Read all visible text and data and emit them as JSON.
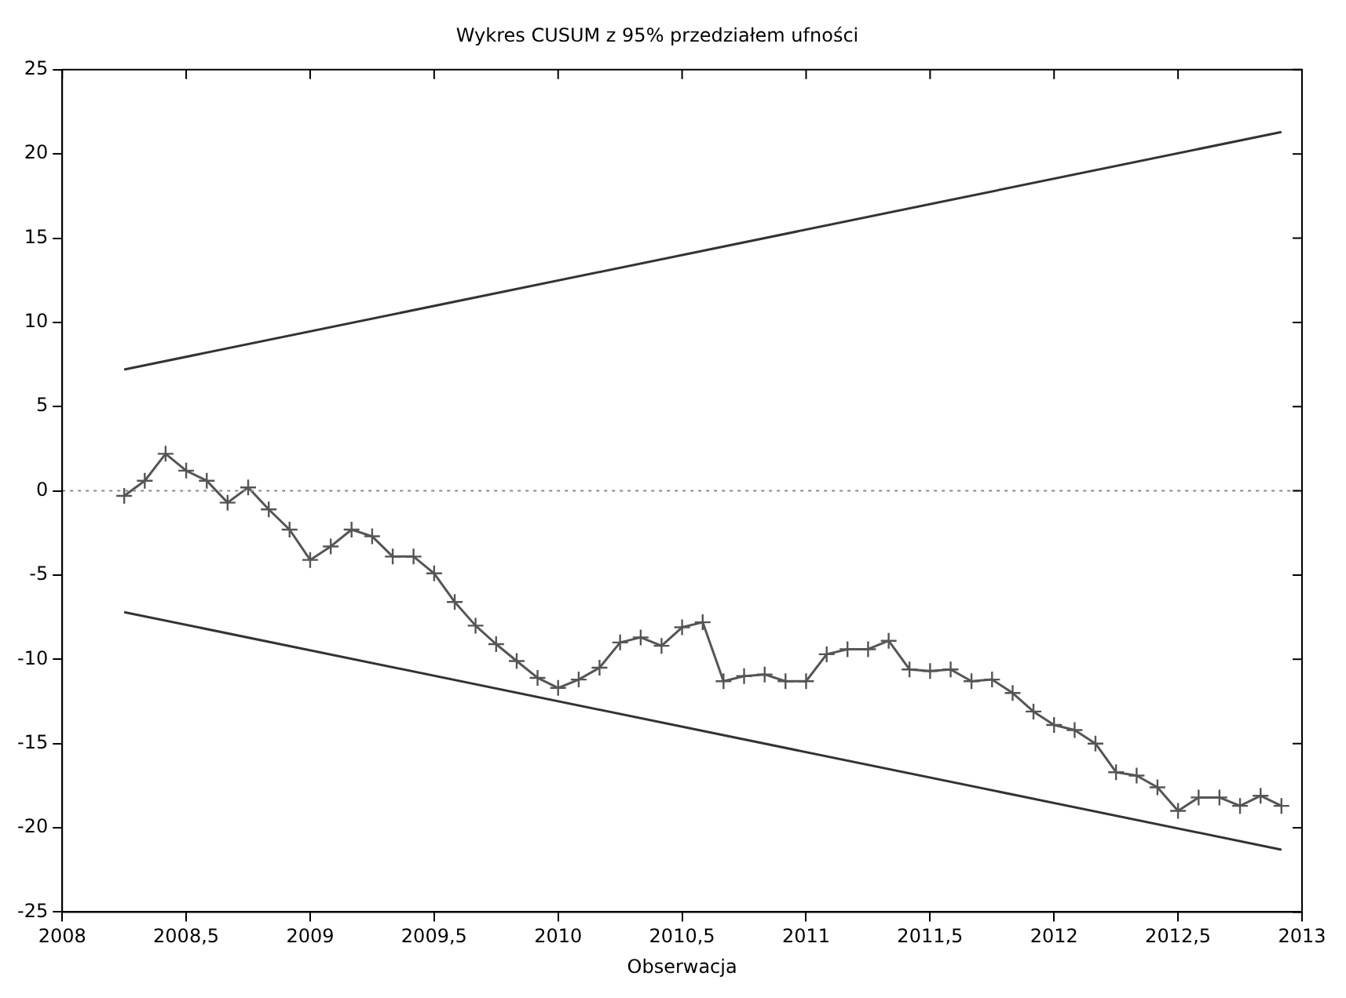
{
  "chart_data": {
    "type": "line",
    "title": "Wykres CUSUM z 95% przedziałem ufności",
    "xlabel": "Obserwacja",
    "xlim": [
      2008,
      2013
    ],
    "xticks": [
      2008,
      {
        "value": 2008.5,
        "label": "2008,5"
      },
      2009,
      {
        "value": 2009.5,
        "label": "2009,5"
      },
      2010,
      {
        "value": 2010.5,
        "label": "2010,5"
      },
      2011,
      {
        "value": 2011.5,
        "label": "2011,5"
      },
      2012,
      {
        "value": 2012.5,
        "label": "2012,5"
      },
      2013
    ],
    "ylim": [
      -25,
      25
    ],
    "yticks": [
      -25,
      -20,
      -15,
      -10,
      -5,
      0,
      5,
      10,
      15,
      20,
      25
    ],
    "grid": false,
    "legend": false,
    "ref_lines": [
      {
        "axis": "y",
        "value": 0,
        "color": "#888888",
        "line_style": "dotted"
      }
    ],
    "series": [
      {
        "color": "#555555",
        "marker": "cross",
        "line_style": "solid",
        "x": [
          2008.25,
          2008.333,
          2008.417,
          2008.5,
          2008.583,
          2008.667,
          2008.75,
          2008.833,
          2008.917,
          2009,
          2009.083,
          2009.167,
          2009.25,
          2009.333,
          2009.417,
          2009.5,
          2009.583,
          2009.667,
          2009.75,
          2009.833,
          2009.917,
          2010,
          2010.083,
          2010.167,
          2010.25,
          2010.333,
          2010.417,
          2010.5,
          2010.583,
          2010.667,
          2010.75,
          2010.833,
          2010.917,
          2011,
          2011.083,
          2011.167,
          2011.25,
          2011.333,
          2011.417,
          2011.5,
          2011.583,
          2011.667,
          2011.75,
          2011.833,
          2011.917,
          2012,
          2012.083,
          2012.167,
          2012.25,
          2012.333,
          2012.417,
          2012.5,
          2012.583,
          2012.667,
          2012.75,
          2012.833,
          2012.917
        ],
        "values": [
          -0.3,
          0.6,
          2.2,
          1.2,
          0.6,
          -0.7,
          0.2,
          -1.1,
          -2.3,
          -4.1,
          -3.3,
          -2.3,
          -2.7,
          -3.9,
          -3.9,
          -4.9,
          -6.6,
          -8.0,
          -9.1,
          -10.1,
          -11.1,
          -11.7,
          -11.2,
          -10.5,
          -9.0,
          -8.7,
          -9.2,
          -8.1,
          -7.8,
          -11.3,
          -11.0,
          -10.9,
          -11.3,
          -11.3,
          -9.7,
          -9.4,
          -9.4,
          -8.9,
          -10.6,
          -10.7,
          -10.6,
          -11.3,
          -11.2,
          -12.0,
          -13.1,
          -13.9,
          -14.2,
          -15.0,
          -16.7,
          -16.9,
          -17.6,
          -19.0,
          -18.2,
          -18.2,
          -18.7,
          -18.1,
          -18.7
        ]
      },
      {
        "color": "#333333",
        "marker": "none",
        "line_style": "solid",
        "x": [
          2008.25,
          2012.917
        ],
        "values": [
          7.2,
          21.3
        ]
      },
      {
        "color": "#333333",
        "marker": "none",
        "line_style": "solid",
        "x": [
          2008.25,
          2012.917
        ],
        "values": [
          -7.2,
          -21.3
        ]
      }
    ]
  }
}
